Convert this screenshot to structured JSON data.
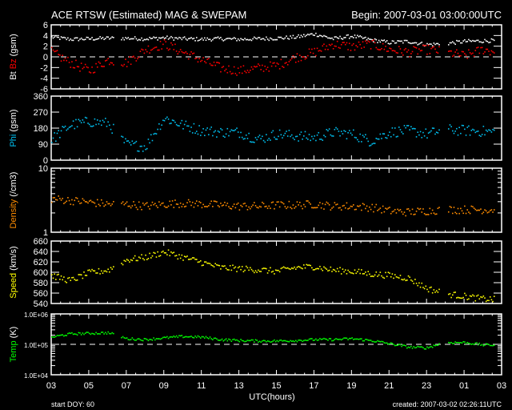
{
  "header": {
    "title": "ACE RTSW (Estimated) MAG & SWEPAM",
    "begin": "Begin: 2007-03-01 03:00:00UTC"
  },
  "footer": {
    "start_doy": "start DOY:  60",
    "created": "created: 2007-03-02 02:26:11UTC"
  },
  "chart_data": {
    "type": "scatter",
    "x_unit": "hours since 2007-03-01 03:00 UTC",
    "xlabel": "UTC(hours)",
    "xlim": [
      0,
      24
    ],
    "x_tick_labels": [
      "03",
      "05",
      "07",
      "09",
      "11",
      "13",
      "15",
      "17",
      "19",
      "21",
      "23",
      "01",
      "03"
    ],
    "x": [
      0,
      1,
      2,
      3,
      4,
      5,
      6,
      7,
      8,
      9,
      10,
      11,
      12,
      13,
      14,
      15,
      16,
      17,
      18,
      19,
      20,
      21,
      22,
      23,
      24
    ],
    "gaps": [
      [
        3.3,
        3.7
      ],
      [
        20.7,
        21.1
      ],
      [
        23.6,
        24
      ]
    ],
    "panels": [
      {
        "name": "mag",
        "ylabel_parts": [
          {
            "text": "Bt",
            "color": "#ffffff"
          },
          {
            "text": " Bz",
            "color": "#ff0000"
          },
          {
            "text": " (gsm)",
            "color": "#ffffff"
          }
        ],
        "scale": "linear",
        "ylim": [
          -6,
          6
        ],
        "y_ticks": [
          -6,
          -4,
          -2,
          0,
          2,
          4,
          6
        ],
        "y_tick_labels": [
          "-6",
          "-4",
          "-2",
          "0",
          "2",
          "4",
          "6"
        ],
        "dashed_at": 0,
        "series": [
          {
            "name": "Bt",
            "color": "#ffffff",
            "jitter": 0.35,
            "values": [
              3.8,
              3.4,
              3.5,
              3.6,
              3.6,
              3.5,
              3.7,
              3.5,
              3.4,
              3.5,
              3.4,
              3.5,
              3.6,
              3.8,
              4.4,
              3.5,
              4.0,
              3.3,
              2.8,
              3.0,
              2.4,
              2.6,
              3.0,
              3.1,
              3.2
            ]
          },
          {
            "name": "Bz",
            "color": "#ff0000",
            "jitter": 0.9,
            "values": [
              1.0,
              -1.0,
              -2.5,
              -0.5,
              -1.0,
              1.5,
              2.5,
              1.0,
              -0.5,
              -2.0,
              -2.5,
              -2.0,
              -1.5,
              0.0,
              1.0,
              2.5,
              2.0,
              2.5,
              1.5,
              1.0,
              1.5,
              1.0,
              0.3,
              1.5,
              0.8
            ]
          }
        ]
      },
      {
        "name": "phi",
        "ylabel_parts": [
          {
            "text": "Phi",
            "color": "#00c0f0"
          },
          {
            "text": " (gsm)",
            "color": "#ffffff"
          }
        ],
        "scale": "linear",
        "ylim": [
          0,
          360
        ],
        "y_ticks": [
          0,
          90,
          180,
          270,
          360
        ],
        "y_tick_labels": [
          "0",
          "90",
          "180",
          "270",
          "360"
        ],
        "series": [
          {
            "name": "Phi",
            "color": "#00c0f0",
            "jitter": 30,
            "values": [
              120,
              200,
              220,
              210,
              90,
              80,
              240,
              200,
              170,
              160,
              160,
              120,
              150,
              140,
              130,
              160,
              150,
              110,
              160,
              170,
              150,
              175,
              170,
              165,
              160
            ]
          }
        ]
      },
      {
        "name": "density",
        "ylabel_parts": [
          {
            "text": "Density",
            "color": "#ff8c00"
          },
          {
            "text": " (/cm3)",
            "color": "#ffffff"
          }
        ],
        "scale": "log",
        "ylim": [
          1,
          10
        ],
        "y_ticks": [
          1,
          10
        ],
        "y_tick_labels": [
          "1",
          "10"
        ],
        "series": [
          {
            "name": "Density",
            "color": "#ff8c00",
            "jitter": 0.25,
            "values": [
              3.4,
              3.2,
              3.0,
              2.8,
              2.8,
              2.6,
              2.8,
              2.9,
              2.8,
              2.7,
              2.6,
              2.6,
              2.7,
              2.7,
              2.8,
              2.6,
              2.6,
              2.5,
              2.2,
              2.1,
              2.2,
              2.3,
              2.3,
              2.3,
              2.3
            ]
          }
        ]
      },
      {
        "name": "speed",
        "ylabel_parts": [
          {
            "text": "Speed",
            "color": "#ffff00"
          },
          {
            "text": " (km/s)",
            "color": "#ffffff"
          }
        ],
        "scale": "linear",
        "ylim": [
          540,
          660
        ],
        "y_ticks": [
          540,
          560,
          580,
          600,
          620,
          640,
          660
        ],
        "y_tick_labels": [
          "540",
          "560",
          "580",
          "600",
          "620",
          "640",
          "660"
        ],
        "series": [
          {
            "name": "Speed",
            "color": "#ffff00",
            "jitter": 6,
            "values": [
              595,
              585,
              600,
              605,
              625,
              630,
              640,
              630,
              620,
              610,
              608,
              606,
              603,
              610,
              612,
              605,
              603,
              598,
              595,
              590,
              570,
              560,
              555,
              550,
              548
            ]
          }
        ]
      },
      {
        "name": "temp",
        "ylabel_parts": [
          {
            "text": "Temp",
            "color": "#00ff00"
          },
          {
            "text": " (K)",
            "color": "#ffffff"
          }
        ],
        "scale": "log",
        "ylim": [
          10000,
          1000000
        ],
        "y_ticks": [
          10000,
          100000,
          1000000
        ],
        "y_tick_labels": [
          "1.0E+04",
          "1.0E+05",
          "1.0E+06"
        ],
        "dashed_at": 100000,
        "series": [
          {
            "name": "Temp",
            "color": "#00ff00",
            "jitter": 0.04,
            "values": [
              180000,
              230000,
              240000,
              250000,
              160000,
              150000,
              170000,
              190000,
              180000,
              150000,
              140000,
              135000,
              135000,
              140000,
              150000,
              150000,
              160000,
              140000,
              110000,
              85000,
              80000,
              120000,
              120000,
              100000,
              100000
            ]
          }
        ]
      }
    ]
  }
}
